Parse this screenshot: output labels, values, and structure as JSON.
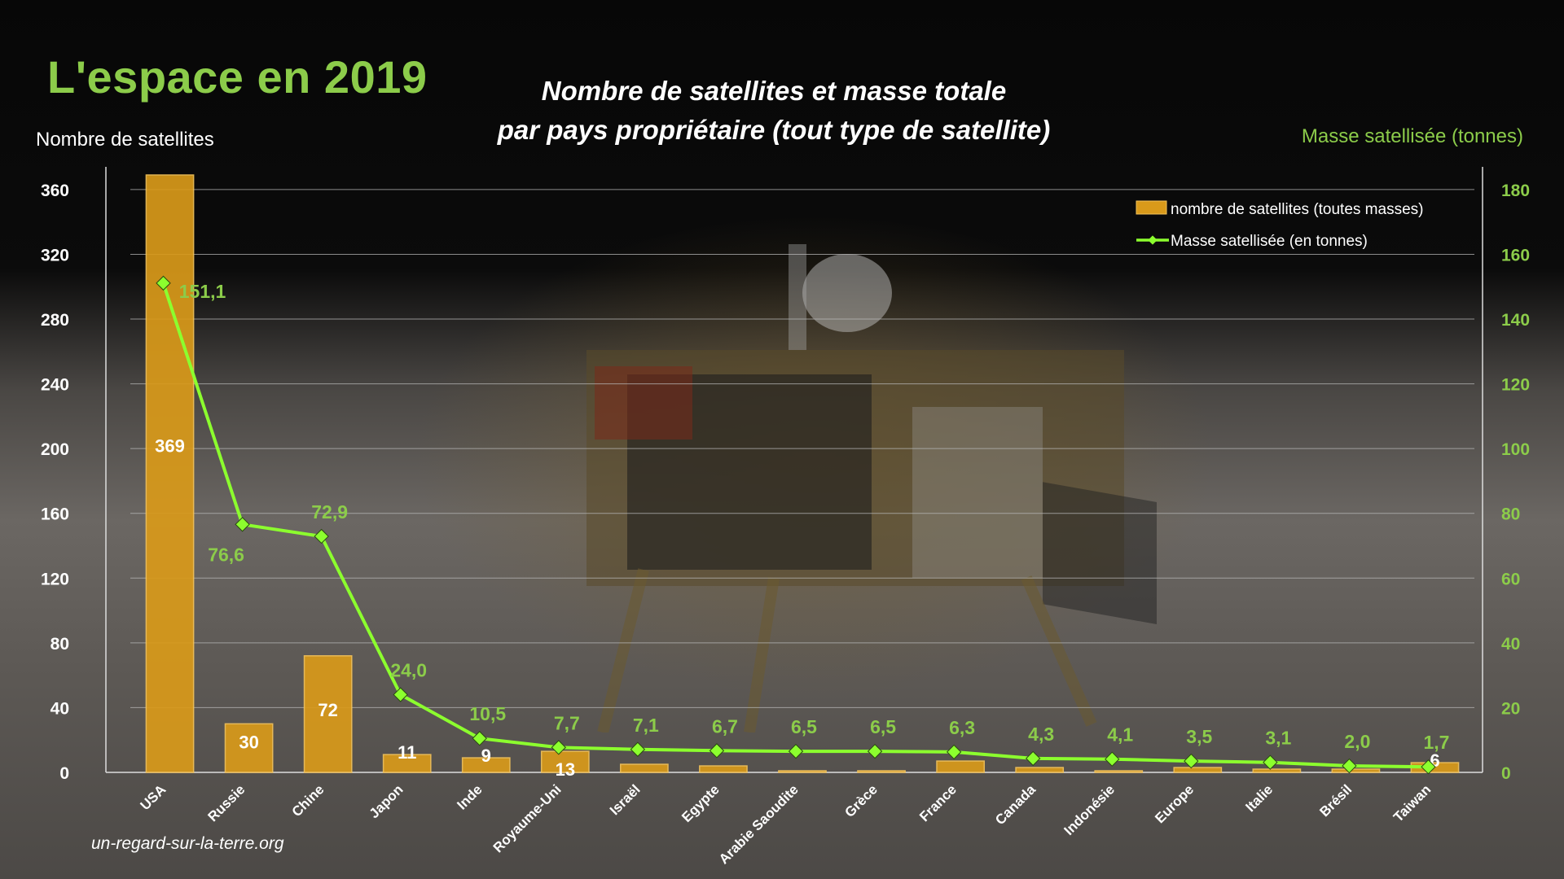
{
  "page": {
    "heading": "L'espace en 2019",
    "title_line1": "Nombre de satellites et masse totale",
    "title_line2": "par pays propriétaire (tout type de satellite)",
    "source": "un-regard-sur-la-terre.org"
  },
  "colors": {
    "bar": "#d99a1a",
    "bar_edge": "#f2c25a",
    "line": "#8cff2e",
    "label_green": "#8ccc4a",
    "text": "#ffffff",
    "grid": "#b8b8b8"
  },
  "chart_data": {
    "type": "bar+line",
    "categories": [
      "USA",
      "Russie",
      "Chine",
      "Japon",
      "Inde",
      "Royaume-Uni",
      "Israël",
      "Egypte",
      "Arabie Saoudite",
      "Grèce",
      "France",
      "Canada",
      "Indonésie",
      "Europe",
      "Italie",
      "Brésil",
      "Taiwan"
    ],
    "series": [
      {
        "name": "nombre de satellites (toutes masses)",
        "type": "bar",
        "axis": "left",
        "values": [
          369,
          30,
          72,
          11,
          9,
          13,
          5,
          4,
          1,
          1,
          7,
          3,
          1,
          3,
          2,
          2,
          6
        ],
        "labels": [
          "369",
          "30",
          "72",
          "11",
          "9",
          "13",
          "",
          "",
          "",
          "",
          "",
          "",
          "",
          "",
          "",
          "",
          "6"
        ]
      },
      {
        "name": "Masse satellisée (en tonnes)",
        "type": "line",
        "axis": "right",
        "values": [
          151.1,
          76.6,
          72.9,
          24.0,
          10.5,
          7.7,
          7.1,
          6.7,
          6.5,
          6.5,
          6.3,
          4.3,
          4.1,
          3.5,
          3.1,
          2.0,
          1.7
        ],
        "labels": [
          "151,1",
          "76,6",
          "72,9",
          "24,0",
          "10,5",
          "7,7",
          "7,1",
          "6,7",
          "6,5",
          "6,5",
          "6,3",
          "4,3",
          "4,1",
          "3,5",
          "3,1",
          "2,0",
          "1,7"
        ]
      }
    ],
    "y_left": {
      "label": "Nombre de satellites",
      "range": [
        0,
        369
      ],
      "ticks": [
        0,
        40,
        80,
        120,
        160,
        200,
        240,
        280,
        320,
        360
      ]
    },
    "y_right": {
      "label": "Masse satellisée (tonnes)",
      "range": [
        0,
        184.5
      ],
      "ticks": [
        0,
        20,
        40,
        60,
        80,
        100,
        120,
        140,
        160,
        180
      ]
    },
    "grid": true,
    "legend_position": "top-right"
  }
}
